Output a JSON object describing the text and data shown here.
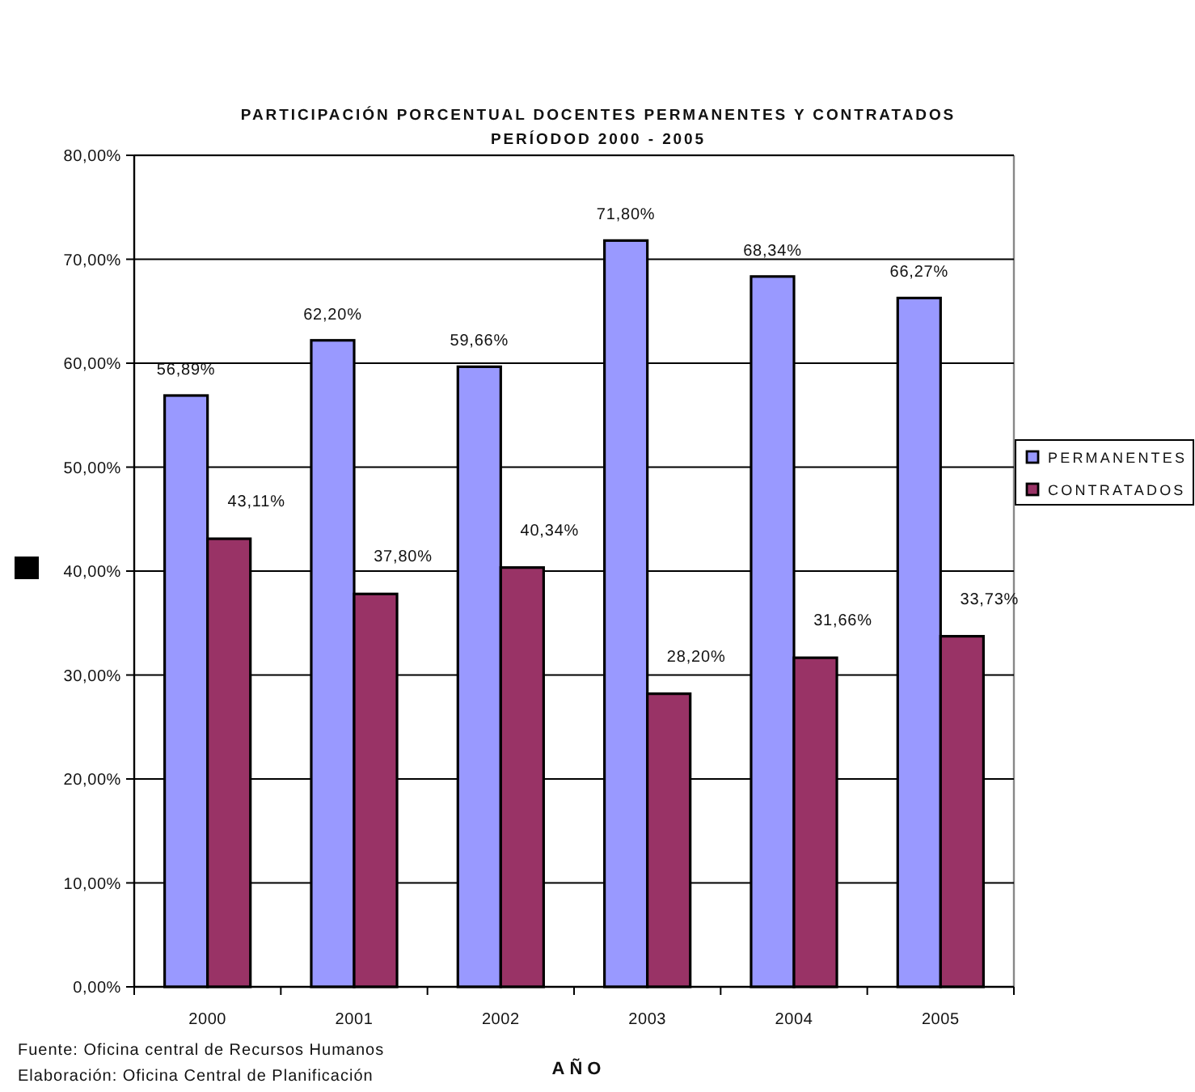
{
  "chart_data": {
    "type": "bar",
    "title": "PARTICIPACIÓN PORCENTUAL DOCENTES PERMANENTES Y CONTRATADOS",
    "subtitle": "PERÍODOD 2000 - 2005",
    "xlabel": "AÑO",
    "annotations": [
      "Fuente: Oficina central de Recursos Humanos",
      "Elaboración: Oficina Central de Planificación"
    ],
    "categories": [
      "2000",
      "2001",
      "2002",
      "2003",
      "2004",
      "2005"
    ],
    "series": [
      {
        "name": "PERMANENTES",
        "color": "#9999ff",
        "values": [
          56.89,
          62.2,
          59.66,
          71.8,
          68.34,
          66.27
        ],
        "value_labels": [
          "56,89%",
          "62,20%",
          "59,66%",
          "71,80%",
          "68,34%",
          "66,27%"
        ]
      },
      {
        "name": "CONTRATADOS",
        "color": "#993366",
        "values": [
          43.11,
          37.8,
          40.34,
          28.2,
          31.66,
          33.73
        ],
        "value_labels": [
          "43,11%",
          "37,80%",
          "40,34%",
          "28,20%",
          "31,66%",
          "33,73%"
        ]
      }
    ],
    "ylim": [
      0,
      80
    ],
    "yticks": [
      {
        "value": 0,
        "label": "0,00%"
      },
      {
        "value": 10,
        "label": "10,00%"
      },
      {
        "value": 20,
        "label": "20,00%"
      },
      {
        "value": 30,
        "label": "30,00%"
      },
      {
        "value": 40,
        "label": "40,00%"
      },
      {
        "value": 50,
        "label": "50,00%"
      },
      {
        "value": 60,
        "label": "60,00%"
      },
      {
        "value": 70,
        "label": "70,00%"
      },
      {
        "value": 80,
        "label": "80,00%"
      }
    ],
    "grid": "y",
    "legend": "right"
  }
}
